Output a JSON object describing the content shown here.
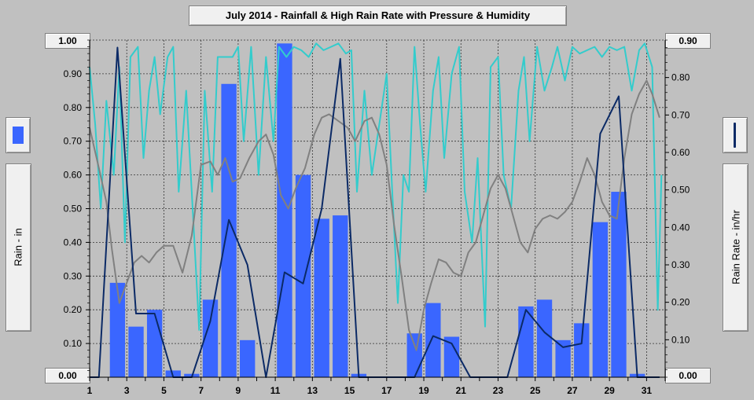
{
  "title": "July 2014 - Rainfall & High Rain Rate with Pressure & Humidity",
  "left_axis": {
    "label": "Rain - in",
    "max_label": "1.00",
    "min_label": "0.00",
    "swatch_color": "#3a66ff"
  },
  "right_axis": {
    "label": "Rain Rate - in/hr",
    "max_label": "0.90",
    "min_label": "0.00",
    "swatch_color": "#0b2a66"
  },
  "chart_data": {
    "type": "bar",
    "xlim": [
      1,
      32
    ],
    "x_ticks": [
      "1",
      "3",
      "5",
      "7",
      "9",
      "11",
      "13",
      "15",
      "17",
      "19",
      "21",
      "23",
      "25",
      "27",
      "29",
      "31"
    ],
    "y_left": {
      "lim": [
        0,
        1.0
      ],
      "ticks": [
        "0.00",
        "0.10",
        "0.20",
        "0.30",
        "0.40",
        "0.50",
        "0.60",
        "0.70",
        "0.80",
        "0.90",
        "1.00"
      ]
    },
    "y_right": {
      "lim": [
        0,
        0.9
      ],
      "ticks": [
        "0.00",
        "0.10",
        "0.20",
        "0.30",
        "0.40",
        "0.50",
        "0.60",
        "0.70",
        "0.80",
        "0.90"
      ]
    },
    "grid": true,
    "colors": {
      "rain_bar": "#3a66ff",
      "rain_rate": "#0b2a66",
      "humidity": "#33cccc",
      "pressure": "#808080"
    },
    "series": [
      {
        "type": "bar",
        "axis": "left",
        "days": [
          1,
          2,
          3,
          4,
          5,
          6,
          7,
          8,
          9,
          10,
          11,
          12,
          13,
          14,
          15,
          16,
          17,
          18,
          19,
          20,
          21,
          22,
          23,
          24,
          25,
          26,
          27,
          28,
          29,
          30,
          31
        ],
        "values": [
          0,
          0.28,
          0.15,
          0.2,
          0.02,
          0.01,
          0.23,
          0.87,
          0.11,
          0,
          0.99,
          0.6,
          0.47,
          0.48,
          0.01,
          0,
          0,
          0.13,
          0.22,
          0.12,
          0,
          0,
          0,
          0.21,
          0.23,
          0.11,
          0.16,
          0.46,
          0.55,
          0.01,
          0
        ]
      },
      {
        "type": "line",
        "axis": "right",
        "points": [
          [
            1.0,
            0
          ],
          [
            1.5,
            0
          ],
          [
            2.5,
            0.88
          ],
          [
            3.5,
            0.17
          ],
          [
            4.5,
            0.17
          ],
          [
            5.5,
            0
          ],
          [
            6.5,
            0
          ],
          [
            7.5,
            0.15
          ],
          [
            8.5,
            0.42
          ],
          [
            9.5,
            0.3
          ],
          [
            10.5,
            0
          ],
          [
            11.5,
            0.28
          ],
          [
            12.5,
            0.25
          ],
          [
            13.5,
            0.45
          ],
          [
            14.5,
            0.85
          ],
          [
            15.5,
            0
          ],
          [
            16.5,
            0
          ],
          [
            17.5,
            0
          ],
          [
            18.5,
            0
          ],
          [
            19.5,
            0.11
          ],
          [
            20.5,
            0.09
          ],
          [
            21.5,
            0
          ],
          [
            22.5,
            0
          ],
          [
            23.5,
            0
          ],
          [
            24.5,
            0.18
          ],
          [
            25.5,
            0.12
          ],
          [
            26.5,
            0.08
          ],
          [
            27.5,
            0.09
          ],
          [
            28.5,
            0.65
          ],
          [
            29.5,
            0.75
          ],
          [
            30.5,
            0
          ],
          [
            31.7,
            0
          ]
        ]
      },
      {
        "type": "line",
        "axis": "left",
        "points": [
          [
            1.0,
            0.92
          ],
          [
            1.3,
            0.75
          ],
          [
            1.6,
            0.5
          ],
          [
            1.9,
            0.82
          ],
          [
            2.3,
            0.6
          ],
          [
            2.6,
            0.92
          ],
          [
            2.9,
            0.4
          ],
          [
            3.2,
            0.95
          ],
          [
            3.6,
            0.98
          ],
          [
            3.9,
            0.65
          ],
          [
            4.2,
            0.85
          ],
          [
            4.5,
            0.95
          ],
          [
            4.8,
            0.78
          ],
          [
            5.2,
            0.95
          ],
          [
            5.5,
            0.98
          ],
          [
            5.8,
            0.55
          ],
          [
            6.2,
            0.85
          ],
          [
            6.6,
            0.45
          ],
          [
            6.9,
            0.14
          ],
          [
            7.2,
            0.85
          ],
          [
            7.6,
            0.55
          ],
          [
            7.9,
            0.95
          ],
          [
            8.3,
            0.95
          ],
          [
            8.7,
            0.95
          ],
          [
            9.0,
            0.98
          ],
          [
            9.3,
            0.7
          ],
          [
            9.7,
            0.98
          ],
          [
            10.1,
            0.6
          ],
          [
            10.5,
            0.95
          ],
          [
            10.9,
            0.7
          ],
          [
            11.2,
            0.98
          ],
          [
            11.6,
            0.95
          ],
          [
            12.0,
            0.98
          ],
          [
            12.4,
            0.97
          ],
          [
            12.8,
            0.95
          ],
          [
            13.2,
            0.99
          ],
          [
            13.6,
            0.97
          ],
          [
            14.0,
            0.98
          ],
          [
            14.4,
            0.99
          ],
          [
            14.8,
            0.96
          ],
          [
            15.1,
            0.97
          ],
          [
            15.4,
            0.55
          ],
          [
            15.8,
            0.85
          ],
          [
            16.2,
            0.6
          ],
          [
            16.6,
            0.75
          ],
          [
            17.0,
            0.9
          ],
          [
            17.3,
            0.55
          ],
          [
            17.6,
            0.22
          ],
          [
            17.9,
            0.6
          ],
          [
            18.2,
            0.55
          ],
          [
            18.5,
            0.98
          ],
          [
            18.8,
            0.75
          ],
          [
            19.1,
            0.55
          ],
          [
            19.5,
            0.85
          ],
          [
            19.8,
            0.95
          ],
          [
            20.1,
            0.65
          ],
          [
            20.5,
            0.9
          ],
          [
            20.9,
            0.98
          ],
          [
            21.2,
            0.55
          ],
          [
            21.6,
            0.4
          ],
          [
            21.9,
            0.65
          ],
          [
            22.3,
            0.15
          ],
          [
            22.6,
            0.92
          ],
          [
            23.0,
            0.95
          ],
          [
            23.3,
            0.6
          ],
          [
            23.7,
            0.5
          ],
          [
            24.1,
            0.85
          ],
          [
            24.4,
            0.95
          ],
          [
            24.7,
            0.7
          ],
          [
            25.1,
            0.98
          ],
          [
            25.5,
            0.85
          ],
          [
            25.9,
            0.92
          ],
          [
            26.2,
            0.98
          ],
          [
            26.6,
            0.88
          ],
          [
            27.0,
            0.98
          ],
          [
            27.4,
            0.96
          ],
          [
            27.8,
            0.97
          ],
          [
            28.2,
            0.98
          ],
          [
            28.6,
            0.95
          ],
          [
            29.0,
            0.98
          ],
          [
            29.4,
            0.97
          ],
          [
            29.8,
            0.98
          ],
          [
            30.2,
            0.85
          ],
          [
            30.6,
            0.97
          ],
          [
            30.9,
            0.99
          ],
          [
            31.3,
            0.92
          ],
          [
            31.6,
            0.2
          ],
          [
            31.8,
            0.6
          ]
        ]
      },
      {
        "type": "line",
        "axis": "left",
        "points": [
          [
            1.0,
            0.74
          ],
          [
            1.5,
            0.62
          ],
          [
            1.9,
            0.52
          ],
          [
            2.2,
            0.38
          ],
          [
            2.6,
            0.22
          ],
          [
            3.0,
            0.28
          ],
          [
            3.4,
            0.34
          ],
          [
            3.8,
            0.36
          ],
          [
            4.2,
            0.34
          ],
          [
            4.6,
            0.37
          ],
          [
            5.0,
            0.39
          ],
          [
            5.5,
            0.39
          ],
          [
            6.0,
            0.31
          ],
          [
            6.5,
            0.42
          ],
          [
            7.0,
            0.63
          ],
          [
            7.5,
            0.64
          ],
          [
            7.9,
            0.6
          ],
          [
            8.3,
            0.65
          ],
          [
            8.7,
            0.58
          ],
          [
            9.1,
            0.59
          ],
          [
            9.6,
            0.65
          ],
          [
            10.1,
            0.7
          ],
          [
            10.5,
            0.72
          ],
          [
            10.9,
            0.66
          ],
          [
            11.3,
            0.54
          ],
          [
            11.7,
            0.5
          ],
          [
            12.1,
            0.56
          ],
          [
            12.6,
            0.62
          ],
          [
            13.1,
            0.72
          ],
          [
            13.5,
            0.77
          ],
          [
            13.9,
            0.78
          ],
          [
            14.4,
            0.76
          ],
          [
            14.9,
            0.74
          ],
          [
            15.3,
            0.7
          ],
          [
            15.8,
            0.76
          ],
          [
            16.2,
            0.77
          ],
          [
            16.6,
            0.72
          ],
          [
            17.0,
            0.63
          ],
          [
            17.4,
            0.45
          ],
          [
            17.8,
            0.3
          ],
          [
            18.2,
            0.14
          ],
          [
            18.6,
            0.08
          ],
          [
            19.0,
            0.2
          ],
          [
            19.4,
            0.28
          ],
          [
            19.8,
            0.35
          ],
          [
            20.2,
            0.34
          ],
          [
            20.6,
            0.31
          ],
          [
            21.0,
            0.3
          ],
          [
            21.4,
            0.37
          ],
          [
            21.8,
            0.4
          ],
          [
            22.2,
            0.48
          ],
          [
            22.6,
            0.56
          ],
          [
            23.0,
            0.6
          ],
          [
            23.4,
            0.56
          ],
          [
            23.8,
            0.48
          ],
          [
            24.2,
            0.4
          ],
          [
            24.6,
            0.37
          ],
          [
            25.0,
            0.44
          ],
          [
            25.4,
            0.47
          ],
          [
            25.8,
            0.48
          ],
          [
            26.2,
            0.47
          ],
          [
            26.6,
            0.49
          ],
          [
            27.0,
            0.52
          ],
          [
            27.4,
            0.58
          ],
          [
            27.8,
            0.65
          ],
          [
            28.2,
            0.6
          ],
          [
            28.6,
            0.52
          ],
          [
            29.0,
            0.48
          ],
          [
            29.4,
            0.47
          ],
          [
            29.8,
            0.65
          ],
          [
            30.2,
            0.78
          ],
          [
            30.6,
            0.84
          ],
          [
            31.0,
            0.88
          ],
          [
            31.3,
            0.84
          ],
          [
            31.7,
            0.77
          ]
        ]
      }
    ]
  }
}
